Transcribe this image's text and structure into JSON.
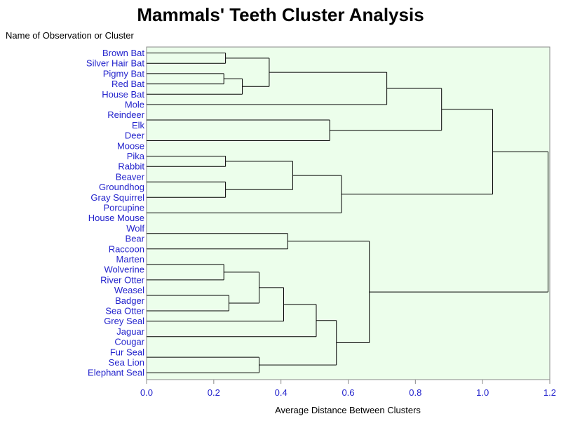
{
  "chart_data": {
    "type": "dendrogram",
    "title": "Mammals' Teeth Cluster Analysis",
    "ylabel": "Name of Observation or Cluster",
    "xlabel": "Average Distance Between Clusters",
    "xlim": [
      0,
      1.2
    ],
    "x_ticks": [
      "0.0",
      "0.2",
      "0.4",
      "0.6",
      "0.8",
      "1.0",
      "1.2"
    ],
    "leaves": [
      "Brown Bat",
      "Silver Hair Bat",
      "Pigmy Bat",
      "Red Bat",
      "House Bat",
      "Mole",
      "Reindeer",
      "Elk",
      "Deer",
      "Moose",
      "Pika",
      "Rabbit",
      "Beaver",
      "Groundhog",
      "Gray Squirrel",
      "Porcupine",
      "House Mouse",
      "Wolf",
      "Bear",
      "Raccoon",
      "Marten",
      "Wolverine",
      "River Otter",
      "Weasel",
      "Badger",
      "Sea Otter",
      "Grey Seal",
      "Jaguar",
      "Cougar",
      "Fur Seal",
      "Sea Lion",
      "Elephant Seal"
    ],
    "merges": [
      {
        "id": "c1",
        "left": "Brown Bat",
        "right": "Silver Hair Bat",
        "height": 0.235
      },
      {
        "id": "c2",
        "left": "Pigmy Bat",
        "right": "Red Bat",
        "height": 0.23
      },
      {
        "id": "c3",
        "left": "c2",
        "right": "House Bat",
        "height": 0.285
      },
      {
        "id": "c4",
        "left": "c1",
        "right": "c3",
        "height": 0.365
      },
      {
        "id": "c5",
        "left": "c4",
        "right": "Mole",
        "height": 0.715
      },
      {
        "id": "c6",
        "left": "Reindeer",
        "right": "Elk",
        "height": 0.0
      },
      {
        "id": "c7",
        "left": "Deer",
        "right": "Moose",
        "height": 0.0
      },
      {
        "id": "c8",
        "left": "c6",
        "right": "c7",
        "height": 0.545
      },
      {
        "id": "c9",
        "left": "c5",
        "right": "c8",
        "height": 0.878
      },
      {
        "id": "c10",
        "left": "Pika",
        "right": "Rabbit",
        "height": 0.235
      },
      {
        "id": "c11",
        "left": "Beaver",
        "right": "Groundhog",
        "height": 0.0
      },
      {
        "id": "c12",
        "left": "c11",
        "right": "Gray Squirrel",
        "height": 0.235
      },
      {
        "id": "c13",
        "left": "c10",
        "right": "c12",
        "height": 0.435
      },
      {
        "id": "c14",
        "left": "Porcupine",
        "right": "House Mouse",
        "height": 0.0
      },
      {
        "id": "c15",
        "left": "c13",
        "right": "c14",
        "height": 0.58
      },
      {
        "id": "c16",
        "left": "c9",
        "right": "c15",
        "height": 1.03
      },
      {
        "id": "c17",
        "left": "Wolf",
        "right": "Bear",
        "height": 0.0
      },
      {
        "id": "c18",
        "left": "c17",
        "right": "Raccoon",
        "height": 0.42
      },
      {
        "id": "c19",
        "left": "Marten",
        "right": "Wolverine",
        "height": 0.0
      },
      {
        "id": "c20",
        "left": "c19",
        "right": "River Otter",
        "height": 0.23
      },
      {
        "id": "c21",
        "left": "Weasel",
        "right": "Badger",
        "height": 0.0
      },
      {
        "id": "c22",
        "left": "c21",
        "right": "Sea Otter",
        "height": 0.245
      },
      {
        "id": "c23",
        "left": "c20",
        "right": "c22",
        "height": 0.335
      },
      {
        "id": "c24",
        "left": "c23",
        "right": "Grey Seal",
        "height": 0.408
      },
      {
        "id": "c25",
        "left": "Jaguar",
        "right": "Cougar",
        "height": 0.0
      },
      {
        "id": "c26",
        "left": "c24",
        "right": "c25",
        "height": 0.505
      },
      {
        "id": "c27",
        "left": "Fur Seal",
        "right": "Sea Lion",
        "height": 0.0
      },
      {
        "id": "c28",
        "left": "c27",
        "right": "Elephant Seal",
        "height": 0.335
      },
      {
        "id": "c29",
        "left": "c26",
        "right": "c28",
        "height": 0.565
      },
      {
        "id": "c30",
        "left": "c18",
        "right": "c29",
        "height": 0.663
      },
      {
        "id": "c31",
        "left": "c16",
        "right": "c30",
        "height": 1.195
      }
    ],
    "colors": {
      "plot_background": "#ecfeeb",
      "label_color": "#2222cc",
      "line_color": "#000000"
    },
    "grid": false
  }
}
